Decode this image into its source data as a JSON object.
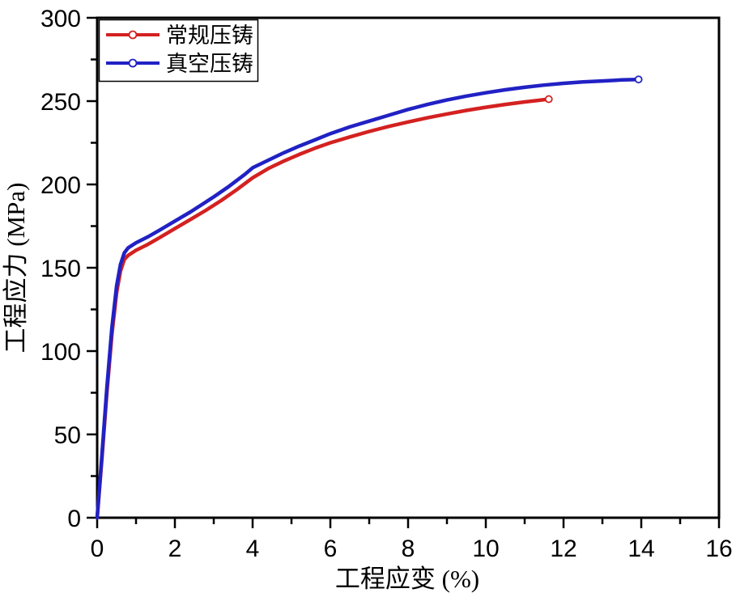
{
  "figure": {
    "background": "#ffffff",
    "frame_color": "#000000"
  },
  "chart_data": {
    "type": "line",
    "title": "",
    "xlabel": "工程应变 (%)",
    "ylabel": "工程应力 (MPa)",
    "xlim": [
      0,
      16
    ],
    "ylim": [
      0,
      300
    ],
    "x_major_ticks": [
      0,
      2,
      4,
      6,
      8,
      10,
      12,
      14,
      16
    ],
    "x_tick_labels": [
      "0",
      "2",
      "4",
      "6",
      "8",
      "10",
      "12",
      "14",
      "16"
    ],
    "x_minor_step": 1,
    "y_major_ticks": [
      0,
      50,
      100,
      150,
      200,
      250,
      300
    ],
    "y_tick_labels": [
      "0",
      "50",
      "100",
      "150",
      "200",
      "250",
      "300"
    ],
    "y_minor_step": 25,
    "grid": false,
    "legend_position": "top-left",
    "series": [
      {
        "name": "常规压铸",
        "color": "#d42121",
        "marker": "open-circle",
        "points": [
          [
            0,
            0
          ],
          [
            0.12,
            35
          ],
          [
            0.25,
            75
          ],
          [
            0.38,
            110
          ],
          [
            0.5,
            135
          ],
          [
            0.6,
            148
          ],
          [
            0.7,
            155
          ],
          [
            0.8,
            157.5
          ],
          [
            1,
            160.5
          ],
          [
            1.3,
            164
          ],
          [
            1.6,
            168
          ],
          [
            2,
            173.5
          ],
          [
            2.4,
            179
          ],
          [
            2.8,
            184.5
          ],
          [
            3.2,
            190.5
          ],
          [
            3.6,
            197
          ],
          [
            4,
            204
          ],
          [
            4.4,
            209.5
          ],
          [
            4.8,
            214
          ],
          [
            5.2,
            218
          ],
          [
            5.6,
            221.7
          ],
          [
            6,
            225
          ],
          [
            6.5,
            228.5
          ],
          [
            7,
            231.8
          ],
          [
            7.5,
            234.8
          ],
          [
            8,
            237.5
          ],
          [
            8.5,
            240
          ],
          [
            9,
            242.3
          ],
          [
            9.5,
            244.4
          ],
          [
            10,
            246.3
          ],
          [
            10.5,
            248
          ],
          [
            11,
            249.5
          ],
          [
            11.3,
            250.3
          ],
          [
            11.62,
            251.2
          ]
        ]
      },
      {
        "name": "真空压铸",
        "color": "#2121c4",
        "marker": "open-circle",
        "points": [
          [
            0,
            0
          ],
          [
            0.12,
            37
          ],
          [
            0.25,
            78
          ],
          [
            0.38,
            114
          ],
          [
            0.5,
            139
          ],
          [
            0.6,
            152
          ],
          [
            0.7,
            159
          ],
          [
            0.8,
            162
          ],
          [
            1,
            165
          ],
          [
            1.3,
            168.5
          ],
          [
            1.6,
            172.5
          ],
          [
            2,
            178
          ],
          [
            2.4,
            183.5
          ],
          [
            2.8,
            189.5
          ],
          [
            3,
            192.5
          ],
          [
            3.4,
            199
          ],
          [
            3.8,
            206
          ],
          [
            4,
            210
          ],
          [
            4.4,
            214.5
          ],
          [
            4.8,
            219
          ],
          [
            5.2,
            223
          ],
          [
            5.6,
            226.7
          ],
          [
            6,
            230.5
          ],
          [
            6.5,
            234.5
          ],
          [
            7,
            238
          ],
          [
            7.5,
            241.5
          ],
          [
            8,
            245
          ],
          [
            8.5,
            248
          ],
          [
            9,
            250.7
          ],
          [
            9.5,
            253
          ],
          [
            10,
            255
          ],
          [
            10.5,
            256.8
          ],
          [
            11,
            258.3
          ],
          [
            11.5,
            259.6
          ],
          [
            12,
            260.7
          ],
          [
            12.5,
            261.5
          ],
          [
            13,
            262.1
          ],
          [
            13.5,
            262.7
          ],
          [
            13.93,
            263
          ]
        ]
      }
    ]
  }
}
